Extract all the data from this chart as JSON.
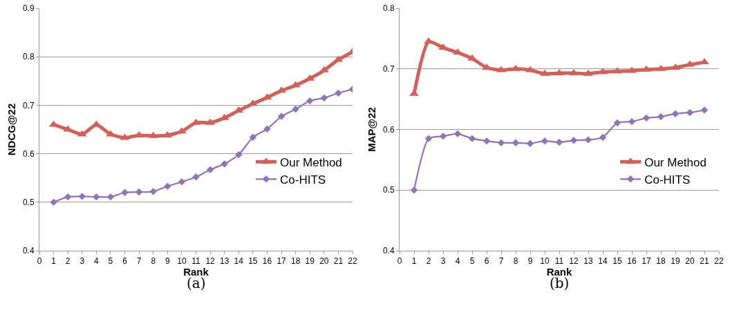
{
  "chart_data": [
    {
      "type": "line",
      "xlabel": "Rank",
      "ylabel": "NDCG@22",
      "annotations": [
        "(a)"
      ],
      "x": [
        1,
        2,
        3,
        4,
        5,
        6,
        7,
        8,
        9,
        10,
        11,
        12,
        13,
        14,
        15,
        16,
        17,
        18,
        19,
        20,
        21,
        22
      ],
      "series": [
        {
          "name": "Our Method",
          "color": "#d4605a",
          "marker": "triangle",
          "values": [
            0.66,
            0.65,
            0.64,
            0.66,
            0.64,
            0.633,
            0.638,
            0.637,
            0.638,
            0.646,
            0.664,
            0.664,
            0.674,
            0.689,
            0.703,
            0.716,
            0.73,
            0.741,
            0.755,
            0.772,
            0.794,
            0.81
          ]
        },
        {
          "name": "Co-HITS",
          "color": "#8f75b8",
          "marker": "diamond",
          "values": [
            0.5,
            0.511,
            0.512,
            0.511,
            0.511,
            0.52,
            0.521,
            0.522,
            0.533,
            0.542,
            0.552,
            0.567,
            0.579,
            0.598,
            0.634,
            0.651,
            0.677,
            0.692,
            0.709,
            0.715,
            0.725,
            0.733
          ]
        }
      ],
      "xlim": [
        0,
        22
      ],
      "xticks": [
        0,
        1,
        2,
        3,
        4,
        5,
        6,
        7,
        8,
        9,
        10,
        11,
        12,
        13,
        14,
        15,
        16,
        17,
        18,
        19,
        20,
        21,
        22
      ],
      "ylim": [
        0.4,
        0.9
      ],
      "yticks": [
        0.4,
        0.5,
        0.6,
        0.7,
        0.8,
        0.9
      ],
      "grid": "y",
      "legend": "right"
    },
    {
      "type": "line",
      "xlabel": "Rank",
      "ylabel": "MAP@22",
      "annotations": [
        "(b)"
      ],
      "x": [
        1,
        2,
        3,
        4,
        5,
        6,
        7,
        8,
        9,
        10,
        11,
        12,
        13,
        14,
        15,
        16,
        17,
        18,
        19,
        20,
        21
      ],
      "series": [
        {
          "name": "Our Method",
          "color": "#d4605a",
          "marker": "triangle",
          "values": [
            0.659,
            0.745,
            0.735,
            0.727,
            0.717,
            0.702,
            0.698,
            0.7,
            0.698,
            0.692,
            0.693,
            0.693,
            0.692,
            0.695,
            0.696,
            0.697,
            0.699,
            0.7,
            0.702,
            0.707,
            0.711
          ]
        },
        {
          "name": "Co-HITS",
          "color": "#8f75b8",
          "marker": "diamond",
          "values": [
            0.5,
            0.585,
            0.589,
            0.593,
            0.585,
            0.581,
            0.578,
            0.578,
            0.577,
            0.581,
            0.579,
            0.582,
            0.583,
            0.587,
            0.611,
            0.613,
            0.619,
            0.621,
            0.626,
            0.628,
            0.632
          ]
        }
      ],
      "xlim": [
        0,
        22
      ],
      "xticks": [
        0,
        1,
        2,
        3,
        4,
        5,
        6,
        7,
        8,
        9,
        10,
        11,
        12,
        13,
        14,
        15,
        16,
        17,
        18,
        19,
        20,
        21,
        22
      ],
      "ylim": [
        0.4,
        0.8
      ],
      "yticks": [
        0.4,
        0.5,
        0.6,
        0.7,
        0.8
      ],
      "grid": "y",
      "legend": "right"
    }
  ]
}
